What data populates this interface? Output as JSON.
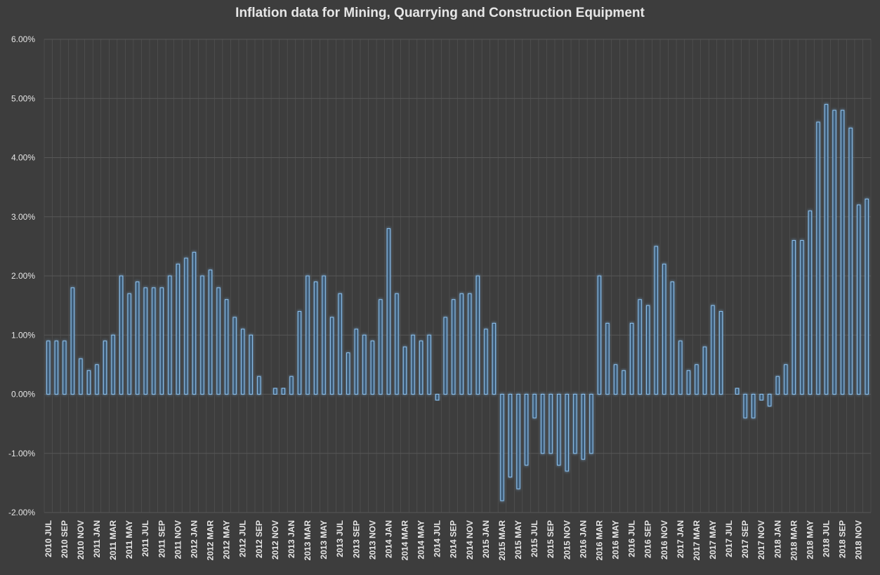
{
  "chart_data": {
    "type": "bar",
    "title": "Inflation data for Mining, Quarrying and Construction Equipment",
    "xlabel": "",
    "ylabel": "",
    "ylim": [
      -0.02,
      0.06
    ],
    "y_ticks": [
      "-2.00%",
      "-1.00%",
      "0.00%",
      "1.00%",
      "2.00%",
      "3.00%",
      "4.00%",
      "5.00%",
      "6.00%"
    ],
    "y_tick_values": [
      -0.02,
      -0.01,
      0,
      0.01,
      0.02,
      0.03,
      0.04,
      0.05,
      0.06
    ],
    "grid": true,
    "legend": "none",
    "colors": {
      "background": "#3d3d3d",
      "bar_fill": "#3e5a75",
      "bar_stroke": "#8ec4f2",
      "bar_glow": "#5b9bd5",
      "grid": "#575757",
      "text": "#e6e6e6"
    },
    "categories": [
      "2010 JUL",
      "2010 AUG",
      "2010 SEP",
      "2010 OCT",
      "2010 NOV",
      "2010 DEC",
      "2011 JAN",
      "2011 FEB",
      "2011 MAR",
      "2011 APR",
      "2011 MAY",
      "2011 JUN",
      "2011 JUL",
      "2011 AUG",
      "2011 SEP",
      "2011 OCT",
      "2011 NOV",
      "2011 DEC",
      "2012 JAN",
      "2012 FEB",
      "2012 MAR",
      "2012 APR",
      "2012 MAY",
      "2012 JUN",
      "2012 JUL",
      "2012 AUG",
      "2012 SEP",
      "2012 OCT",
      "2012 NOV",
      "2012 DEC",
      "2013 JAN",
      "2013 FEB",
      "2013 MAR",
      "2013 APR",
      "2013 MAY",
      "2013 JUN",
      "2013 JUL",
      "2013 AUG",
      "2013 SEP",
      "2013 OCT",
      "2013 NOV",
      "2013 DEC",
      "2014 JAN",
      "2014 FEB",
      "2014 MAR",
      "2014 APR",
      "2014 MAY",
      "2014 JUN",
      "2014 JUL",
      "2014 AUG",
      "2014 SEP",
      "2014 OCT",
      "2014 NOV",
      "2014 DEC",
      "2015 JAN",
      "2015 FEB",
      "2015 MAR",
      "2015 APR",
      "2015 MAY",
      "2015 JUN",
      "2015 JUL",
      "2015 AUG",
      "2015 SEP",
      "2015 OCT",
      "2015 NOV",
      "2015 DEC",
      "2016 JAN",
      "2016 FEB",
      "2016 MAR",
      "2016 APR",
      "2016 MAY",
      "2016 JUN",
      "2016 JUL",
      "2016 AUG",
      "2016 SEP",
      "2016 OCT",
      "2016 NOV",
      "2016 DEC",
      "2017 JAN",
      "2017 FEB",
      "2017 MAR",
      "2017 APR",
      "2017 MAY",
      "2017 JUN",
      "2017 JUL",
      "2017 AUG",
      "2017 SEP",
      "2017 OCT",
      "2017 NOV",
      "2017 DEC",
      "2018 JAN",
      "2018 FEB",
      "2018 MAR",
      "2018 APR",
      "2018 MAY",
      "2018 JUN",
      "2018 JUL",
      "2018 AUG",
      "2018 SEP",
      "2018 OCT",
      "2018 NOV",
      "2018 DEC"
    ],
    "x_tick_labels": [
      "2010 JUL",
      "2010 SEP",
      "2010 NOV",
      "2011 JAN",
      "2011 MAR",
      "2011 MAY",
      "2011 JUL",
      "2011 SEP",
      "2011 NOV",
      "2012 JAN",
      "2012 MAR",
      "2012 MAY",
      "2012 JUL",
      "2012 SEP",
      "2012 NOV",
      "2013 JAN",
      "2013 MAR",
      "2013 MAY",
      "2013 JUL",
      "2013 SEP",
      "2013 NOV",
      "2014 JAN",
      "2014 MAR",
      "2014 MAY",
      "2014 JUL",
      "2014 SEP",
      "2014 NOV",
      "2015 JAN",
      "2015 MAR",
      "2015 MAY",
      "2015 JUL",
      "2015 SEP",
      "2015 NOV",
      "2016 JAN",
      "2016 MAR",
      "2016 MAY",
      "2016 JUL",
      "2016 SEP",
      "2016 NOV",
      "2017 JAN",
      "2017 MAR",
      "2017 MAY",
      "2017 JUL",
      "2017 SEP",
      "2017 NOV",
      "2018 JAN",
      "2018 MAR",
      "2018 MAY",
      "2018 JUL",
      "2018 SEP",
      "2018 NOV"
    ],
    "series": [
      {
        "values": [
          0.009,
          0.009,
          0.009,
          0.018,
          0.006,
          0.004,
          0.005,
          0.009,
          0.01,
          0.02,
          0.017,
          0.019,
          0.018,
          0.018,
          0.018,
          0.02,
          0.022,
          0.023,
          0.024,
          0.02,
          0.021,
          0.018,
          0.016,
          0.013,
          0.011,
          0.01,
          0.003,
          0,
          0.001,
          0.001,
          0.003,
          0.014,
          0.02,
          0.019,
          0.02,
          0.013,
          0.017,
          0.007,
          0.011,
          0.01,
          0.009,
          0.016,
          0.028,
          0.017,
          0.008,
          0.01,
          0.009,
          0.01,
          -0.001,
          0.013,
          0.016,
          0.017,
          0.017,
          0.02,
          0.011,
          0.012,
          -0.018,
          -0.014,
          -0.016,
          -0.012,
          -0.004,
          -0.01,
          -0.01,
          -0.012,
          -0.013,
          -0.01,
          -0.011,
          -0.01,
          0.02,
          0.012,
          0.005,
          0.004,
          0.012,
          0.016,
          0.015,
          0.025,
          0.022,
          0.019,
          0.009,
          0.004,
          0.005,
          0.008,
          0.015,
          0.014,
          0,
          0.001,
          -0.004,
          -0.004,
          -0.001,
          -0.002,
          0.003,
          0.005,
          0.026,
          0.026,
          0.031,
          0.046,
          0.049,
          0.048,
          0.048,
          0.045,
          0.032,
          0.033
        ]
      }
    ]
  }
}
